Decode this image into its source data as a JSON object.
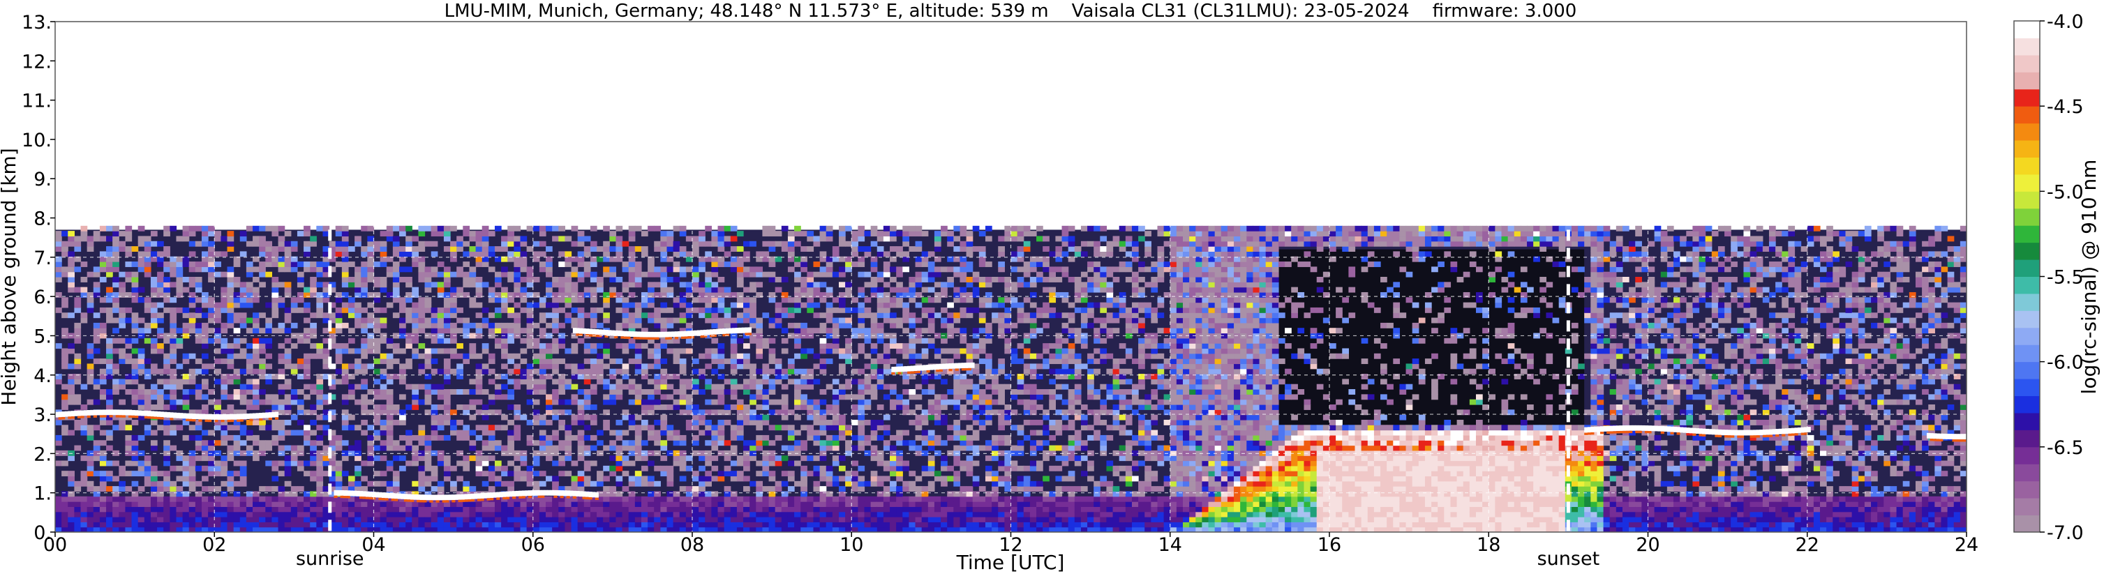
{
  "chart_data": {
    "type": "heatmap",
    "title": "LMU-MIM, Munich, Germany; 48.148° N 11.573° E, altitude: 539 m    Vaisala CL31 (CL31LMU): 23-05-2024    firmware: 3.000",
    "xlabel": "Time [UTC]",
    "ylabel": "Height above ground [km]",
    "xlim": [
      0,
      24
    ],
    "ylim": [
      0,
      13
    ],
    "grid": true,
    "x_ticks": [
      0,
      2,
      4,
      6,
      8,
      10,
      12,
      14,
      16,
      18,
      20,
      22,
      24
    ],
    "x_tick_labels": [
      "00",
      "02",
      "04",
      "06",
      "08",
      "10",
      "12",
      "14",
      "16",
      "18",
      "20",
      "22",
      "24"
    ],
    "y_ticks": [
      0,
      1,
      2,
      3,
      4,
      5,
      6,
      7,
      8,
      9,
      10,
      11,
      12,
      13
    ],
    "y_tick_labels": [
      "0.",
      "1.",
      "2.",
      "3.",
      "4.",
      "5.",
      "6.",
      "7.",
      "8.",
      "9.",
      "10.",
      "11.",
      "12.",
      "13."
    ],
    "data_top_km": 7.7,
    "events": [
      {
        "label": "sunrise",
        "time": 3.45
      },
      {
        "label": "sunset",
        "time": 19.0
      }
    ],
    "colorbar": {
      "label": "log(rc-signal) @ 910 nm",
      "min": -7.0,
      "max": -4.0,
      "ticks": [
        -7.0,
        -6.5,
        -6.0,
        -5.5,
        -5.0,
        -4.5,
        -4.0
      ],
      "tick_labels": [
        "-7.0",
        "-6.5",
        "-6.0",
        "-5.5",
        "-5.0",
        "-4.5",
        "-4.0"
      ],
      "colors": [
        "#a991a8",
        "#a57ca6",
        "#9a62a0",
        "#8a4a9c",
        "#762e96",
        "#5a1a8c",
        "#2d10a8",
        "#1a2fe0",
        "#2c55f0",
        "#4e76f2",
        "#6f92f4",
        "#8eaaf4",
        "#a9c2f2",
        "#7fc9d8",
        "#3ebca8",
        "#1fa07a",
        "#168a3c",
        "#2fb63a",
        "#7fd23a",
        "#c8e83a",
        "#eef03a",
        "#f4d820",
        "#f6b414",
        "#f48a10",
        "#f05c10",
        "#e8241a",
        "#e8b0b0",
        "#f0c8c8",
        "#f6e0e0",
        "#ffffff"
      ]
    },
    "cloud_layers": [
      {
        "start": 0.0,
        "end": 2.8,
        "height": 3.0
      },
      {
        "start": 3.5,
        "end": 6.8,
        "height": 0.95
      },
      {
        "start": 6.5,
        "end": 8.7,
        "height": 5.1
      },
      {
        "start": 10.5,
        "end": 11.5,
        "height": 4.2
      },
      {
        "start": 19.2,
        "end": 22.0,
        "height": 2.6
      },
      {
        "start": 23.5,
        "end": 24.0,
        "height": 2.5
      }
    ],
    "convective_boundary_layer": {
      "start": 14.0,
      "end": 19.3,
      "top": 2.5
    }
  }
}
